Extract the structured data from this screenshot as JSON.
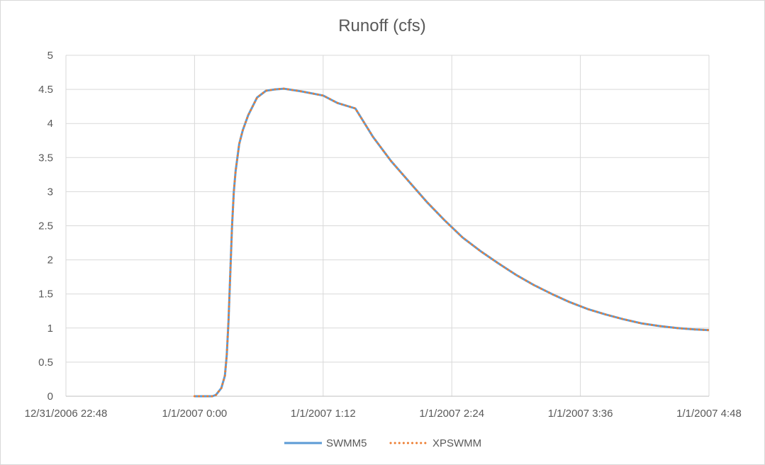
{
  "chart_data": {
    "type": "line",
    "title": "Runoff (cfs)",
    "xlabel": "",
    "ylabel": "",
    "x_unit": "time",
    "xlim": [
      "12/31/2006 22:48",
      "1/1/2007 4:48"
    ],
    "x_tick_labels": [
      "12/31/2006 22:48",
      "1/1/2007 0:00",
      "1/1/2007 1:12",
      "1/1/2007 2:24",
      "1/1/2007 3:36",
      "1/1/2007 4:48"
    ],
    "ylim": [
      0,
      5
    ],
    "y_tick_labels": [
      "0",
      "0.5",
      "1",
      "1.5",
      "2",
      "2.5",
      "3",
      "3.5",
      "4",
      "4.5",
      "5"
    ],
    "grid": true,
    "legend_position": "bottom",
    "x": [
      "1/1/2007 0:00",
      "1/1/2007 0:05",
      "1/1/2007 0:10",
      "1/1/2007 0:12",
      "1/1/2007 0:15",
      "1/1/2007 0:17",
      "1/1/2007 0:18",
      "1/1/2007 0:19",
      "1/1/2007 0:20",
      "1/1/2007 0:21",
      "1/1/2007 0:22",
      "1/1/2007 0:23",
      "1/1/2007 0:25",
      "1/1/2007 0:27",
      "1/1/2007 0:30",
      "1/1/2007 0:35",
      "1/1/2007 0:40",
      "1/1/2007 0:45",
      "1/1/2007 0:50",
      "1/1/2007 1:00",
      "1/1/2007 1:12",
      "1/1/2007 1:20",
      "1/1/2007 1:30",
      "1/1/2007 1:40",
      "1/1/2007 1:50",
      "1/1/2007 2:00",
      "1/1/2007 2:10",
      "1/1/2007 2:20",
      "1/1/2007 2:30",
      "1/1/2007 2:40",
      "1/1/2007 2:50",
      "1/1/2007 3:00",
      "1/1/2007 3:10",
      "1/1/2007 3:20",
      "1/1/2007 3:30",
      "1/1/2007 3:40",
      "1/1/2007 3:50",
      "1/1/2007 4:00",
      "1/1/2007 4:10",
      "1/1/2007 4:20",
      "1/1/2007 4:30",
      "1/1/2007 4:40",
      "1/1/2007 4:48"
    ],
    "series": [
      {
        "name": "SWMM5",
        "color": "#5b9bd5",
        "style": "solid",
        "values": [
          0,
          0,
          0,
          0.02,
          0.12,
          0.3,
          0.6,
          1.1,
          1.8,
          2.5,
          3.0,
          3.3,
          3.7,
          3.9,
          4.12,
          4.38,
          4.48,
          4.5,
          4.51,
          4.47,
          4.41,
          4.3,
          4.22,
          3.8,
          3.45,
          3.15,
          2.85,
          2.58,
          2.33,
          2.13,
          1.95,
          1.78,
          1.63,
          1.5,
          1.38,
          1.28,
          1.2,
          1.13,
          1.07,
          1.03,
          1.0,
          0.98,
          0.97
        ]
      },
      {
        "name": "XPSWMM",
        "color": "#ed7d31",
        "style": "dotted",
        "values": [
          0,
          0,
          0,
          0.02,
          0.12,
          0.3,
          0.6,
          1.1,
          1.8,
          2.5,
          3.0,
          3.3,
          3.7,
          3.9,
          4.12,
          4.38,
          4.48,
          4.5,
          4.51,
          4.47,
          4.41,
          4.3,
          4.22,
          3.8,
          3.45,
          3.15,
          2.85,
          2.58,
          2.33,
          2.13,
          1.95,
          1.78,
          1.63,
          1.5,
          1.38,
          1.28,
          1.2,
          1.13,
          1.07,
          1.03,
          1.0,
          0.98,
          0.97
        ]
      }
    ]
  }
}
